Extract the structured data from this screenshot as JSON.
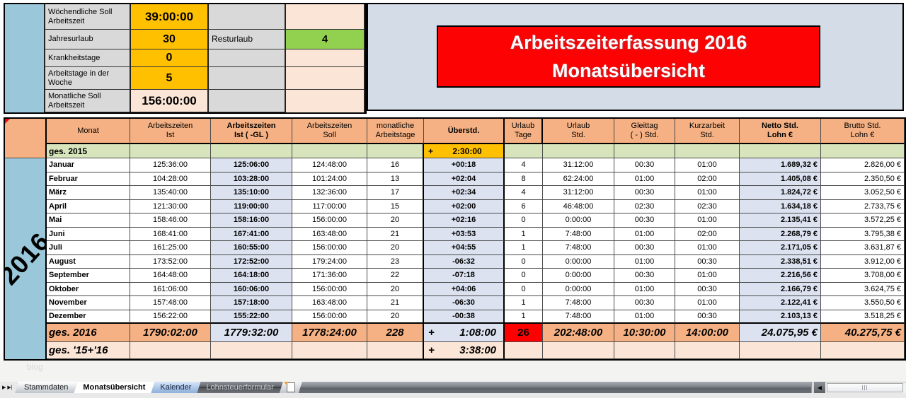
{
  "colors": {
    "banner_red": "#FD0202",
    "header_orange": "#F5B183",
    "gold": "#FFC000",
    "totals_green": "#D7E4BC",
    "rest_green": "#92D050",
    "year_blue": "#9AC8DA",
    "lavender_cell": "#DCE2F0",
    "cream": "#FBE5D6",
    "red_cell": "#FF0000"
  },
  "title": {
    "line1": "Arbeitszeiterfassung 2016",
    "line2": "Monatsübersicht"
  },
  "year_label": "2016",
  "watermark": "blog",
  "settings": {
    "weekly": {
      "label": "Wöchendliche Soll Arbeitszeit",
      "value": "39:00:00"
    },
    "vacation": {
      "label": "Jahresurlaub",
      "value": "30",
      "label2": "Resturlaub",
      "value2": "4"
    },
    "sick": {
      "label": "Krankheitstage",
      "value": "0"
    },
    "workdays": {
      "label": "Arbeitstage in der Woche",
      "value": "5"
    },
    "monthly": {
      "label": "Monatliche Soll Arbeitszeit",
      "value": "156:00:00"
    }
  },
  "table": {
    "headers": [
      {
        "l1": "Monat",
        "l2": ""
      },
      {
        "l1": "Arbeitszeiten",
        "l2": "Ist"
      },
      {
        "l1": "Arbeitszeiten",
        "l2": "Ist ( -GL )"
      },
      {
        "l1": "Arbeitszeiten",
        "l2": "Soll"
      },
      {
        "l1": "monatliche",
        "l2": "Arbeitstage"
      },
      {
        "l1": "Überstd.",
        "l2": ""
      },
      {
        "l1": "Urlaub",
        "l2": "Tage"
      },
      {
        "l1": "Urlaub",
        "l2": "Std."
      },
      {
        "l1": "Gleittag",
        "l2": "( - ) Std."
      },
      {
        "l1": "Kurzarbeit",
        "l2": "Std."
      },
      {
        "l1": "Netto Std.",
        "l2": "Lohn €"
      },
      {
        "l1": "Brutto Std.",
        "l2": "Lohn €"
      }
    ],
    "ges2015": {
      "label": "ges. 2015",
      "ueberstd_sign": "+",
      "ueberstd": "2:30:00"
    },
    "months": [
      {
        "monat": "Januar",
        "ist": "125:36:00",
        "ist_gl": "125:06:00",
        "soll": "124:48:00",
        "tage": "16",
        "ueberstd": "+00:18",
        "urlaub_tage": "4",
        "urlaub_std": "31:12:00",
        "gleittag": "00:30",
        "kurzarbeit": "01:00",
        "netto": "1.689,32 €",
        "brutto": "2.826,00 €"
      },
      {
        "monat": "Februar",
        "ist": "104:28:00",
        "ist_gl": "103:28:00",
        "soll": "101:24:00",
        "tage": "13",
        "ueberstd": "+02:04",
        "urlaub_tage": "8",
        "urlaub_std": "62:24:00",
        "gleittag": "01:00",
        "kurzarbeit": "02:00",
        "netto": "1.405,08 €",
        "brutto": "2.350,50 €"
      },
      {
        "monat": "März",
        "ist": "135:40:00",
        "ist_gl": "135:10:00",
        "soll": "132:36:00",
        "tage": "17",
        "ueberstd": "+02:34",
        "urlaub_tage": "4",
        "urlaub_std": "31:12:00",
        "gleittag": "00:30",
        "kurzarbeit": "01:00",
        "netto": "1.824,72 €",
        "brutto": "3.052,50 €"
      },
      {
        "monat": "April",
        "ist": "121:30:00",
        "ist_gl": "119:00:00",
        "soll": "117:00:00",
        "tage": "15",
        "ueberstd": "+02:00",
        "urlaub_tage": "6",
        "urlaub_std": "46:48:00",
        "gleittag": "02:30",
        "kurzarbeit": "02:30",
        "netto": "1.634,18 €",
        "brutto": "2.733,75 €"
      },
      {
        "monat": "Mai",
        "ist": "158:46:00",
        "ist_gl": "158:16:00",
        "soll": "156:00:00",
        "tage": "20",
        "ueberstd": "+02:16",
        "urlaub_tage": "0",
        "urlaub_std": "0:00:00",
        "gleittag": "00:30",
        "kurzarbeit": "01:00",
        "netto": "2.135,41 €",
        "brutto": "3.572,25 €"
      },
      {
        "monat": "Juni",
        "ist": "168:41:00",
        "ist_gl": "167:41:00",
        "soll": "163:48:00",
        "tage": "21",
        "ueberstd": "+03:53",
        "urlaub_tage": "1",
        "urlaub_std": "7:48:00",
        "gleittag": "01:00",
        "kurzarbeit": "02:00",
        "netto": "2.268,79 €",
        "brutto": "3.795,38 €"
      },
      {
        "monat": "Juli",
        "ist": "161:25:00",
        "ist_gl": "160:55:00",
        "soll": "156:00:00",
        "tage": "20",
        "ueberstd": "+04:55",
        "urlaub_tage": "1",
        "urlaub_std": "7:48:00",
        "gleittag": "00:30",
        "kurzarbeit": "01:00",
        "netto": "2.171,05 €",
        "brutto": "3.631,87 €"
      },
      {
        "monat": "August",
        "ist": "173:52:00",
        "ist_gl": "172:52:00",
        "soll": "179:24:00",
        "tage": "23",
        "ueberstd": "-06:32",
        "urlaub_tage": "0",
        "urlaub_std": "0:00:00",
        "gleittag": "01:00",
        "kurzarbeit": "00:30",
        "netto": "2.338,51 €",
        "brutto": "3.912,00 €"
      },
      {
        "monat": "September",
        "ist": "164:48:00",
        "ist_gl": "164:18:00",
        "soll": "171:36:00",
        "tage": "22",
        "ueberstd": "-07:18",
        "urlaub_tage": "0",
        "urlaub_std": "0:00:00",
        "gleittag": "00:30",
        "kurzarbeit": "01:00",
        "netto": "2.216,56 €",
        "brutto": "3.708,00 €"
      },
      {
        "monat": "Oktober",
        "ist": "161:06:00",
        "ist_gl": "160:06:00",
        "soll": "156:00:00",
        "tage": "20",
        "ueberstd": "+04:06",
        "urlaub_tage": "0",
        "urlaub_std": "0:00:00",
        "gleittag": "01:00",
        "kurzarbeit": "00:30",
        "netto": "2.166,79 €",
        "brutto": "3.624,75 €"
      },
      {
        "monat": "November",
        "ist": "157:48:00",
        "ist_gl": "157:18:00",
        "soll": "163:48:00",
        "tage": "21",
        "ueberstd": "-06:30",
        "urlaub_tage": "1",
        "urlaub_std": "7:48:00",
        "gleittag": "00:30",
        "kurzarbeit": "01:00",
        "netto": "2.122,41 €",
        "brutto": "3.550,50 €"
      },
      {
        "monat": "Dezember",
        "ist": "156:22:00",
        "ist_gl": "155:22:00",
        "soll": "156:00:00",
        "tage": "20",
        "ueberstd": "-00:38",
        "urlaub_tage": "1",
        "urlaub_std": "7:48:00",
        "gleittag": "01:00",
        "kurzarbeit": "00:30",
        "netto": "2.103,13 €",
        "brutto": "3.518,25 €"
      }
    ],
    "ges2016": {
      "label": "ges. 2016",
      "ist": "1790:02:00",
      "ist_gl": "1779:32:00",
      "soll": "1778:24:00",
      "tage": "228",
      "ueberstd_sign": "+",
      "ueberstd": "1:08:00",
      "urlaub_tage": "26",
      "urlaub_std": "202:48:00",
      "gleittag": "10:30:00",
      "kurzarbeit": "14:00:00",
      "netto": "24.075,95 €",
      "brutto": "40.275,75 €"
    },
    "ges1516": {
      "label": "ges. '15+'16",
      "ueberstd_sign": "+",
      "ueberstd": "3:38:00"
    }
  },
  "sheet_tabs": {
    "nav_next": "▶",
    "nav_last": "▶|",
    "scroll_left": "◀",
    "tabs": [
      {
        "label": "Stammdaten",
        "active": false
      },
      {
        "label": "Monatsübersicht",
        "active": true
      },
      {
        "label": "Kalender",
        "active": false
      },
      {
        "label": "Lohnsteuerformular",
        "active": false
      }
    ]
  }
}
